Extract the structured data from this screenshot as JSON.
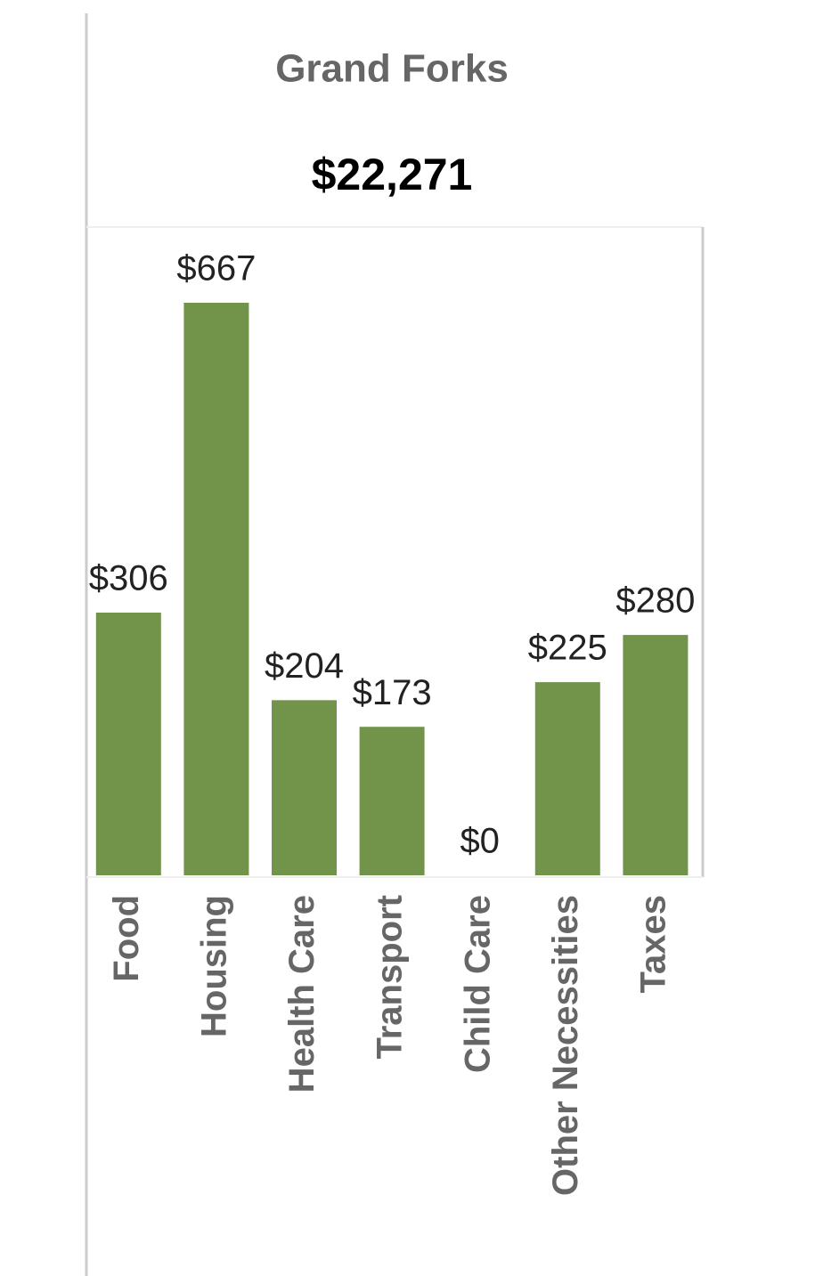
{
  "chart_data": {
    "type": "bar",
    "title": "Grand Forks",
    "subtitle": "$22,271",
    "categories": [
      "Food",
      "Housing",
      "Health Care",
      "Transport",
      "Child Care",
      "Other Necessities",
      "Taxes"
    ],
    "values": [
      306,
      667,
      204,
      173,
      0,
      225,
      280
    ],
    "value_labels": [
      "$306",
      "$667",
      "$204",
      "$173",
      "$0",
      "$225",
      "$280"
    ],
    "color": "#71944a"
  }
}
